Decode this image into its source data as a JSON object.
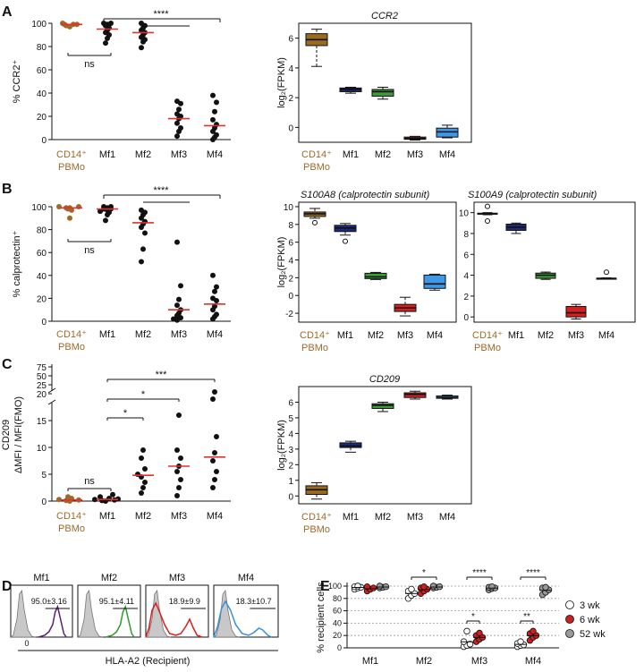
{
  "colors": {
    "cd14": "#a0692a",
    "cd14_box": "#9a6a1e",
    "mf1_box": "#1f2a7a",
    "mf2_box": "#3c9c3a",
    "mf3_box": "#d81e1e",
    "mf4_box": "#3f97e8",
    "mean_line": "#e03030",
    "dot": "#111111",
    "red_dot": "#cc1f1f",
    "grey_dot": "#9a9a9a",
    "hist_fill": "#c8c8c8",
    "mf1_line": "#5a1e7a",
    "mf2_line": "#2e9a2e",
    "mf3_line": "#d81e1e",
    "mf4_line": "#3a8fd8"
  },
  "labels": {
    "cd14_line1": "CD14⁺",
    "cd14_line2": "PBMo",
    "mf1": "Mf1",
    "mf2": "Mf2",
    "mf3": "Mf3",
    "mf4": "Mf4"
  },
  "chart_data": [
    {
      "id": "A_left",
      "panel": "A",
      "type": "scatter",
      "ylabel": "% CCR2⁺",
      "ylim": [
        0,
        100
      ],
      "yticks": [
        "0",
        "20",
        "40",
        "60",
        "80",
        "100"
      ],
      "groups": [
        "CD14⁺ PBMo",
        "Mf1",
        "Mf2",
        "Mf3",
        "Mf4"
      ],
      "means": [
        99,
        95,
        92,
        18,
        12
      ],
      "points": [
        [
          97,
          98,
          99,
          99,
          99,
          100
        ],
        [
          83,
          87,
          90,
          92,
          94,
          96,
          98,
          99,
          100,
          100
        ],
        [
          79,
          84,
          86,
          88,
          90,
          92,
          94,
          96,
          98,
          100
        ],
        [
          3,
          7,
          10,
          14,
          18,
          20,
          22,
          26,
          31,
          33
        ],
        [
          0,
          2,
          4,
          7,
          10,
          13,
          17,
          24,
          32,
          38
        ]
      ],
      "significance": [
        {
          "label": "ns",
          "from": 0,
          "to": 1
        },
        {
          "label": "****",
          "from": 1,
          "to": 4
        }
      ]
    },
    {
      "id": "A_right",
      "panel": "A",
      "type": "box",
      "title": "CCR2",
      "ylabel": "log₂(FPKM)",
      "ylim": [
        -1,
        7
      ],
      "yticks": [
        "0",
        "2",
        "4",
        "6"
      ],
      "groups": [
        "CD14⁺ PBMo",
        "Mf1",
        "Mf2",
        "Mf3",
        "Mf4"
      ],
      "boxes": [
        {
          "min": 4.1,
          "q1": 5.5,
          "median": 5.9,
          "q3": 6.3,
          "max": 6.6
        },
        {
          "min": 2.3,
          "q1": 2.4,
          "median": 2.55,
          "q3": 2.65,
          "max": 2.7
        },
        {
          "min": 1.9,
          "q1": 2.1,
          "median": 2.4,
          "q3": 2.55,
          "max": 2.7
        },
        {
          "min": -0.85,
          "q1": -0.8,
          "median": -0.75,
          "q3": -0.65,
          "max": -0.6
        },
        {
          "min": -0.7,
          "q1": -0.65,
          "median": -0.3,
          "q3": -0.05,
          "max": 0.15
        }
      ],
      "outliers": []
    },
    {
      "id": "B_left",
      "panel": "B",
      "type": "scatter",
      "ylabel": "% calprotectin⁺",
      "ylim": [
        0,
        100
      ],
      "yticks": [
        "0",
        "20",
        "40",
        "60",
        "80",
        "100"
      ],
      "groups": [
        "CD14⁺ PBMo",
        "Mf1",
        "Mf2",
        "Mf3",
        "Mf4"
      ],
      "means": [
        99,
        98,
        86,
        10,
        15
      ],
      "points": [
        [
          90,
          97,
          98,
          99,
          99,
          100,
          100
        ],
        [
          88,
          93,
          95,
          96,
          97,
          98,
          98,
          99,
          100,
          100
        ],
        [
          52,
          63,
          77,
          82,
          85,
          87,
          90,
          93,
          95,
          97
        ],
        [
          1,
          2,
          3,
          5,
          7,
          10,
          14,
          19,
          31,
          69
        ],
        [
          2,
          4,
          6,
          10,
          13,
          18,
          20,
          26,
          30,
          40
        ]
      ],
      "significance": [
        {
          "label": "ns",
          "from": 0,
          "to": 1
        },
        {
          "label": "****",
          "from": 1,
          "to": 4
        }
      ]
    },
    {
      "id": "B_mid",
      "panel": "B",
      "type": "box",
      "title": "S100A8 (calprotectin subunit)",
      "ylabel": "log₂(FPKM)",
      "ylim": [
        -3,
        10.5
      ],
      "yticks": [
        "-2",
        "0",
        "2",
        "4",
        "6",
        "8",
        "10"
      ],
      "groups": [
        "CD14⁺ PBMo",
        "Mf1",
        "Mf2",
        "Mf3",
        "Mf4"
      ],
      "boxes": [
        {
          "min": 8.7,
          "q1": 8.9,
          "median": 9.2,
          "q3": 9.4,
          "max": 9.8
        },
        {
          "min": 6.8,
          "q1": 7.2,
          "median": 7.6,
          "q3": 7.9,
          "max": 8.1
        },
        {
          "min": 1.8,
          "q1": 1.9,
          "median": 2.1,
          "q3": 2.5,
          "max": 2.6
        },
        {
          "min": -2.3,
          "q1": -1.8,
          "median": -1.4,
          "q3": -1.0,
          "max": -0.2
        },
        {
          "min": 0.6,
          "q1": 0.8,
          "median": 1.3,
          "q3": 2.3,
          "max": 2.4
        }
      ],
      "outliers": [
        {
          "group": 0,
          "value": 8.2
        },
        {
          "group": 1,
          "value": 6.1
        }
      ]
    },
    {
      "id": "B_right",
      "panel": "B",
      "type": "box",
      "title": "S100A9 (calprotectin subunit)",
      "ylabel": "",
      "ylim": [
        -0.5,
        11
      ],
      "yticks": [
        "0",
        "2",
        "4",
        "6",
        "8",
        "10"
      ],
      "groups": [
        "CD14⁺ PBMo",
        "Mf1",
        "Mf2",
        "Mf3",
        "Mf4"
      ],
      "boxes": [
        {
          "min": 9.8,
          "q1": 9.85,
          "median": 9.9,
          "q3": 9.95,
          "max": 10.0
        },
        {
          "min": 8.0,
          "q1": 8.3,
          "median": 8.6,
          "q3": 8.9,
          "max": 9.0
        },
        {
          "min": 3.6,
          "q1": 3.7,
          "median": 4.0,
          "q3": 4.2,
          "max": 4.3
        },
        {
          "min": -0.2,
          "q1": 0.0,
          "median": 0.4,
          "q3": 1.0,
          "max": 1.2
        },
        {
          "min": 3.65,
          "q1": 3.65,
          "median": 3.7,
          "q3": 3.7,
          "max": 3.75
        }
      ],
      "outliers": [
        {
          "group": 0,
          "value": 10.6
        },
        {
          "group": 0,
          "value": 9.2
        },
        {
          "group": 4,
          "value": 4.3
        }
      ]
    },
    {
      "id": "C_left",
      "panel": "C",
      "type": "scatter",
      "ylabel_lines": [
        "CD209",
        "ΔMFI / MFI(FMO)"
      ],
      "yscale": "broken",
      "yticks": [
        "0",
        "5",
        "10",
        "15",
        "20",
        "25",
        "50",
        "75"
      ],
      "groups": [
        "CD14⁺ PBMo",
        "Mf1",
        "Mf2",
        "Mf3",
        "Mf4"
      ],
      "means": [
        0.2,
        0.3,
        4.8,
        6.5,
        8.2
      ],
      "points": [
        [
          0.0,
          0.1,
          0.2,
          0.3,
          0.5,
          0.8
        ],
        [
          0.0,
          0.1,
          0.2,
          0.3,
          0.4,
          0.5,
          0.8,
          1.2
        ],
        [
          1.5,
          2.5,
          3.5,
          4.5,
          5.0,
          6.0,
          8.0,
          9.5
        ],
        [
          1.0,
          2.5,
          4.0,
          5.5,
          6.5,
          8.0,
          9.5,
          16.0
        ],
        [
          2.5,
          4.0,
          5.5,
          7.5,
          9.0,
          12.0,
          19.0,
          60.0
        ]
      ],
      "significance": [
        {
          "label": "ns",
          "from": 0,
          "to": 1
        },
        {
          "label": "*",
          "from": 1,
          "to": 2
        },
        {
          "label": "*",
          "from": 1,
          "to": 3
        },
        {
          "label": "***",
          "from": 1,
          "to": 4
        }
      ]
    },
    {
      "id": "C_right",
      "panel": "C",
      "type": "box",
      "title": "CD209",
      "ylabel": "log₂(FPKM)",
      "ylim": [
        -0.5,
        7
      ],
      "yticks": [
        "0",
        "1",
        "2",
        "3",
        "4",
        "5",
        "6"
      ],
      "groups": [
        "CD14⁺ PBMo",
        "Mf1",
        "Mf2",
        "Mf3",
        "Mf4"
      ],
      "boxes": [
        {
          "min": -0.2,
          "q1": 0.1,
          "median": 0.4,
          "q3": 0.65,
          "max": 0.85
        },
        {
          "min": 2.8,
          "q1": 3.1,
          "median": 3.2,
          "q3": 3.4,
          "max": 3.5
        },
        {
          "min": 5.4,
          "q1": 5.6,
          "median": 5.8,
          "q3": 5.9,
          "max": 6.0
        },
        {
          "min": 6.2,
          "q1": 6.3,
          "median": 6.5,
          "q3": 6.6,
          "max": 6.7
        },
        {
          "min": 6.2,
          "q1": 6.25,
          "median": 6.3,
          "q3": 6.4,
          "max": 6.45
        }
      ],
      "outliers": []
    },
    {
      "id": "D",
      "panel": "D",
      "type": "histogram",
      "xlabel": "HLA-A2 (Recipient)",
      "x_zero_label": "0",
      "panels": [
        {
          "title": "Mf1",
          "gate_label": "95.0±3.16",
          "color": "#5a1e7a"
        },
        {
          "title": "Mf2",
          "gate_label": "95.1±4.11",
          "color": "#2e9a2e"
        },
        {
          "title": "Mf3",
          "gate_label": "18.9±9.9",
          "color": "#d81e1e"
        },
        {
          "title": "Mf4",
          "gate_label": "18.3±10.7",
          "color": "#3a8fd8"
        }
      ]
    },
    {
      "id": "E",
      "panel": "E",
      "type": "scatter",
      "ylabel": "% recipient cells",
      "ylim": [
        0,
        100
      ],
      "yticks": [
        "0",
        "20",
        "40",
        "60",
        "80",
        "100"
      ],
      "grid": true,
      "categories": [
        "Mf1",
        "Mf2",
        "Mf3",
        "Mf4"
      ],
      "series": [
        {
          "name": "3 wk",
          "values": [
            [
              95,
              97,
              98,
              99,
              100
            ],
            [
              80,
              85,
              88,
              92,
              95
            ],
            [
              2,
              4,
              6,
              10,
              27
            ],
            [
              2,
              4,
              5,
              7,
              10
            ]
          ]
        },
        {
          "name": "6 wk",
          "values": [
            [
              92,
              95,
              97,
              99
            ],
            [
              88,
              92,
              95,
              97,
              99
            ],
            [
              10,
              14,
              17,
              20,
              24
            ],
            [
              12,
              17,
              20,
              23,
              27
            ]
          ]
        },
        {
          "name": "52 wk",
          "values": [
            [
              97,
              98,
              99,
              100
            ],
            [
              97,
              98,
              99,
              100
            ],
            [
              94,
              96,
              97,
              98,
              99
            ],
            [
              86,
              90,
              94,
              97,
              98
            ]
          ]
        }
      ],
      "significance": [
        {
          "label": "*",
          "category": 1,
          "from": 0,
          "to": 2
        },
        {
          "label": "****",
          "category": 2,
          "from": 0,
          "to": 2
        },
        {
          "label": "*",
          "category": 2,
          "from": 0,
          "to": 1
        },
        {
          "label": "****",
          "category": 3,
          "from": 0,
          "to": 2
        },
        {
          "label": "**",
          "category": 3,
          "from": 0,
          "to": 1
        }
      ]
    }
  ],
  "panel_letters": [
    "A",
    "B",
    "C",
    "D",
    "E"
  ]
}
